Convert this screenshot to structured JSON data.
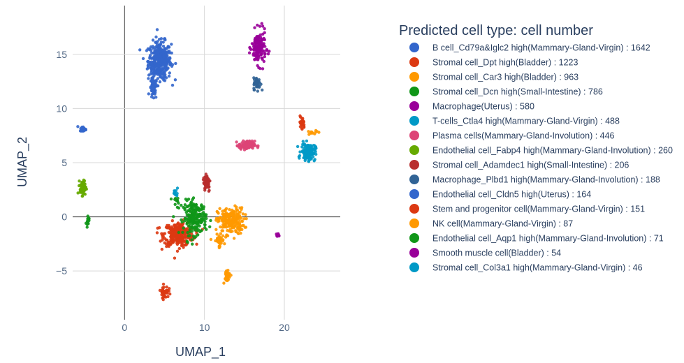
{
  "chart_data": {
    "type": "scatter",
    "title": "",
    "xlabel": "UMAP_1",
    "ylabel": "UMAP_2",
    "xlim": [
      -6.5,
      27
    ],
    "ylim": [
      -9.5,
      19.5
    ],
    "x_ticks": [
      0,
      10,
      20
    ],
    "y_ticks": [
      -5,
      0,
      5,
      10,
      15
    ],
    "grid": true,
    "legend_title": "Predicted cell type: cell number",
    "legend_position": "right",
    "series": [
      {
        "name": "B cell_Cd79a&Iglc2 high(Mammary-Gland-Virgin) : 1642",
        "color": "#3366CC",
        "clusters": [
          {
            "cx": 4.4,
            "cy": 14.4,
            "sx": 1.3,
            "sy": 1.6,
            "n": 380
          },
          {
            "cx": 3.6,
            "cy": 11.8,
            "sx": 0.4,
            "sy": 0.9,
            "n": 60
          }
        ]
      },
      {
        "name": "Stromal cell_Dpt high(Bladder) : 1223",
        "color": "#DC3912",
        "clusters": [
          {
            "cx": 6.8,
            "cy": -1.6,
            "sx": 1.7,
            "sy": 1.0,
            "n": 300
          }
        ]
      },
      {
        "name": "Stromal cell_Car3 high(Bladder) : 963",
        "color": "#FF9900",
        "clusters": [
          {
            "cx": 13.3,
            "cy": -0.4,
            "sx": 1.5,
            "sy": 1.1,
            "n": 220
          },
          {
            "cx": 11.8,
            "cy": -2.2,
            "sx": 0.6,
            "sy": 0.5,
            "n": 40
          }
        ]
      },
      {
        "name": "Stromal cell_Dcn high(Small-Intestine) : 786",
        "color": "#109618",
        "clusters": [
          {
            "cx": 8.8,
            "cy": -0.1,
            "sx": 1.3,
            "sy": 1.4,
            "n": 200
          }
        ]
      },
      {
        "name": "Macrophage(Uterus) : 580",
        "color": "#990099",
        "clusters": [
          {
            "cx": 16.8,
            "cy": 15.6,
            "sx": 0.8,
            "sy": 1.4,
            "n": 160
          }
        ]
      },
      {
        "name": "T-cells_Ctla4 high(Mammary-Gland-Virgin) : 488",
        "color": "#0099C6",
        "clusters": [
          {
            "cx": 23.0,
            "cy": 6.0,
            "sx": 0.8,
            "sy": 0.7,
            "n": 140
          }
        ]
      },
      {
        "name": "Plasma cells(Mammary-Gland-Involution) : 446",
        "color": "#DD4477",
        "clusters": [
          {
            "cx": 15.3,
            "cy": 6.6,
            "sx": 0.9,
            "sy": 0.35,
            "n": 120
          }
        ]
      },
      {
        "name": "Endothelial cell_Fabp4 high(Mammary-Gland-Involution) : 260",
        "color": "#66AA00",
        "clusters": [
          {
            "cx": -5.2,
            "cy": 2.7,
            "sx": 0.35,
            "sy": 0.6,
            "n": 70
          }
        ]
      },
      {
        "name": "Stromal cell_Adamdec1 high(Small-Intestine) : 206",
        "color": "#B82E2E",
        "clusters": [
          {
            "cx": 10.3,
            "cy": 3.2,
            "sx": 0.4,
            "sy": 0.8,
            "n": 60
          }
        ]
      },
      {
        "name": "Macrophage_Plbd1 high(Mammary-Gland-Involution) : 188",
        "color": "#316395",
        "clusters": [
          {
            "cx": 16.6,
            "cy": 12.3,
            "sx": 0.4,
            "sy": 0.5,
            "n": 50
          }
        ]
      },
      {
        "name": "Endothelial cell_Cldn5 high(Uterus) : 164",
        "color": "#3366CC",
        "clusters": [
          {
            "cx": -5.2,
            "cy": 8.1,
            "sx": 0.35,
            "sy": 0.2,
            "n": 45
          }
        ]
      },
      {
        "name": "Stem and progenitor cell(Mammary-Gland-Virgin) : 151",
        "color": "#DC3912",
        "clusters": [
          {
            "cx": 5.0,
            "cy": -6.9,
            "sx": 0.45,
            "sy": 0.5,
            "n": 45
          },
          {
            "cx": 22.2,
            "cy": 8.6,
            "sx": 0.3,
            "sy": 0.6,
            "n": 25
          }
        ]
      },
      {
        "name": "NK cell(Mammary-Gland-Virgin) : 87",
        "color": "#FF9900",
        "clusters": [
          {
            "cx": 12.8,
            "cy": -5.4,
            "sx": 0.45,
            "sy": 0.55,
            "n": 35
          },
          {
            "cx": 23.6,
            "cy": 7.8,
            "sx": 0.5,
            "sy": 0.2,
            "n": 12
          }
        ]
      },
      {
        "name": "Endothelial cell_Aqp1 high(Mammary-Gland-Involution) : 71",
        "color": "#109618",
        "clusters": [
          {
            "cx": -4.6,
            "cy": -0.3,
            "sx": 0.15,
            "sy": 0.4,
            "n": 18
          },
          {
            "cx": 6.5,
            "cy": 1.3,
            "sx": 0.5,
            "sy": 0.4,
            "n": 12
          }
        ]
      },
      {
        "name": "Smooth muscle cell(Bladder) : 54",
        "color": "#990099",
        "clusters": [
          {
            "cx": 19.2,
            "cy": -1.7,
            "sx": 0.2,
            "sy": 0.15,
            "n": 14
          }
        ]
      },
      {
        "name": "Stromal cell_Col3a1 high(Mammary-Gland-Virgin) : 46",
        "color": "#0099C6",
        "clusters": [
          {
            "cx": 6.4,
            "cy": 2.2,
            "sx": 0.25,
            "sy": 0.3,
            "n": 12
          }
        ]
      }
    ]
  }
}
